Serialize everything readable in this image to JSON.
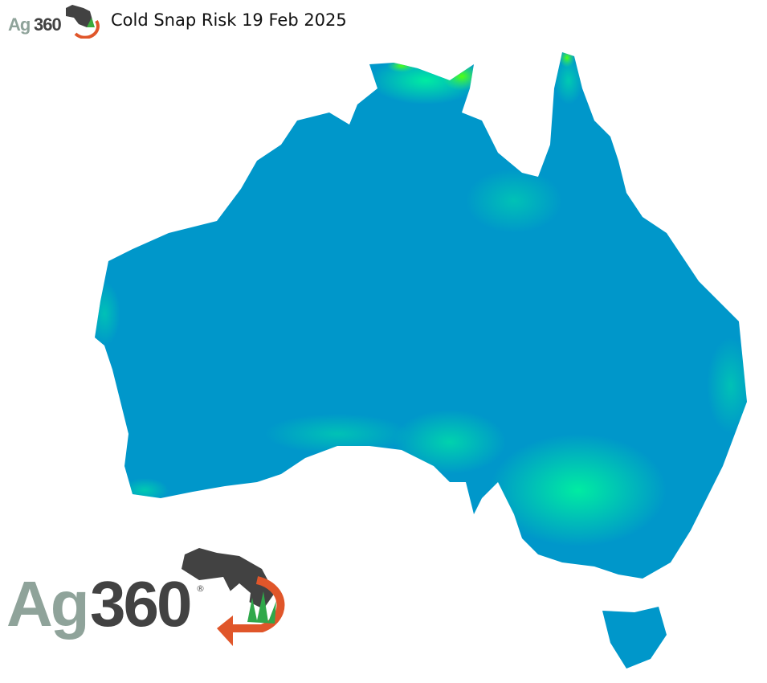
{
  "header": {
    "logo_text": "Ag360",
    "title": "Cold Snap Risk 19 Feb 2025"
  },
  "map": {
    "region": "Australia",
    "colors": {
      "low_risk": "#0097ca",
      "medium_risk": "#00e8a8",
      "high_risk": "#50ff10"
    }
  },
  "watermark": {
    "logo_text_ag": "Ag",
    "logo_text_num": "360",
    "registered_mark": "®"
  }
}
